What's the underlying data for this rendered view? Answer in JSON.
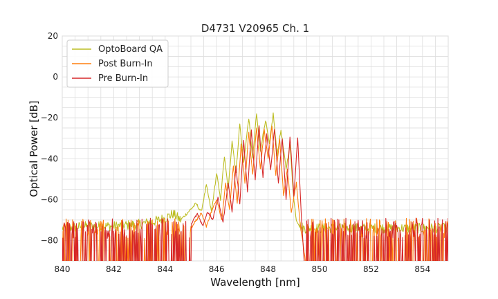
{
  "chart_data": {
    "type": "line",
    "title": "D4731 V20965 Ch. 1",
    "xlabel": "Wavelength [nm]",
    "ylabel": "Optical Power [dB]",
    "xlim": [
      840,
      855
    ],
    "ylim": [
      -90,
      20
    ],
    "xticks": [
      840,
      842,
      844,
      846,
      848,
      850,
      852,
      854
    ],
    "yticks": [
      20,
      0,
      -20,
      -40,
      -60,
      -80
    ],
    "x_minor_step": 0.5,
    "y_minor_step": 5,
    "grid": true,
    "legend_position": "top-left",
    "noise_floor": -90,
    "series": [
      {
        "name": "OptoBoard QA",
        "color": "#bcbd22",
        "x": [
          840.0,
          841.0,
          842.0,
          843.0,
          843.5,
          844.0,
          844.3,
          844.6,
          844.9,
          845.2,
          845.4,
          845.6,
          845.8,
          846.0,
          846.15,
          846.3,
          846.45,
          846.6,
          846.75,
          846.9,
          847.05,
          847.25,
          847.4,
          847.55,
          847.7,
          847.9,
          848.05,
          848.2,
          848.35,
          848.5,
          848.7,
          848.85,
          849.0,
          849.1,
          849.25,
          849.4,
          849.6,
          850.0,
          851.0,
          852.0,
          853.0,
          854.0,
          855.0
        ],
        "y": [
          -74,
          -73,
          -73,
          -72,
          -71,
          -69,
          -67,
          -70,
          -66,
          -62,
          -66,
          -53,
          -66,
          -47,
          -60,
          -39,
          -55,
          -31,
          -47,
          -23,
          -42,
          -20,
          -40,
          -18,
          -36,
          -21,
          -33,
          -18,
          -38,
          -26,
          -45,
          -33,
          -60,
          -70,
          -73,
          -74,
          -74,
          -74,
          -74,
          -74,
          -74,
          -74,
          -74
        ]
      },
      {
        "name": "Post Burn-In",
        "color": "#ff7f0e",
        "x": [
          845.0,
          845.2,
          845.4,
          845.6,
          845.8,
          846.0,
          846.2,
          846.35,
          846.5,
          846.65,
          846.8,
          846.95,
          847.1,
          847.25,
          847.4,
          847.55,
          847.7,
          847.85,
          848.0,
          848.15,
          848.3,
          848.45,
          848.6,
          848.75,
          848.9,
          849.1,
          849.25,
          849.45
        ],
        "y": [
          -74,
          -70,
          -67,
          -73,
          -66,
          -60,
          -70,
          -52,
          -65,
          -43,
          -62,
          -33,
          -52,
          -27,
          -48,
          -25,
          -45,
          -26,
          -40,
          -24,
          -48,
          -30,
          -58,
          -45,
          -66,
          -52,
          -72,
          -90
        ]
      },
      {
        "name": "Pre Burn-In",
        "color": "#d62728",
        "x": [
          845.0,
          845.25,
          845.45,
          845.65,
          845.85,
          846.05,
          846.25,
          846.45,
          846.6,
          846.75,
          846.9,
          847.05,
          847.2,
          847.35,
          847.5,
          847.65,
          847.8,
          847.95,
          848.1,
          848.25,
          848.4,
          848.55,
          848.7,
          848.85,
          849.0,
          849.15,
          849.3,
          849.4
        ],
        "y": [
          -72,
          -67,
          -73,
          -66,
          -70,
          -59,
          -71,
          -52,
          -66,
          -44,
          -62,
          -31,
          -56,
          -26,
          -50,
          -24,
          -49,
          -28,
          -46,
          -25,
          -52,
          -30,
          -60,
          -29,
          -58,
          -30,
          -70,
          -90
        ]
      }
    ]
  }
}
